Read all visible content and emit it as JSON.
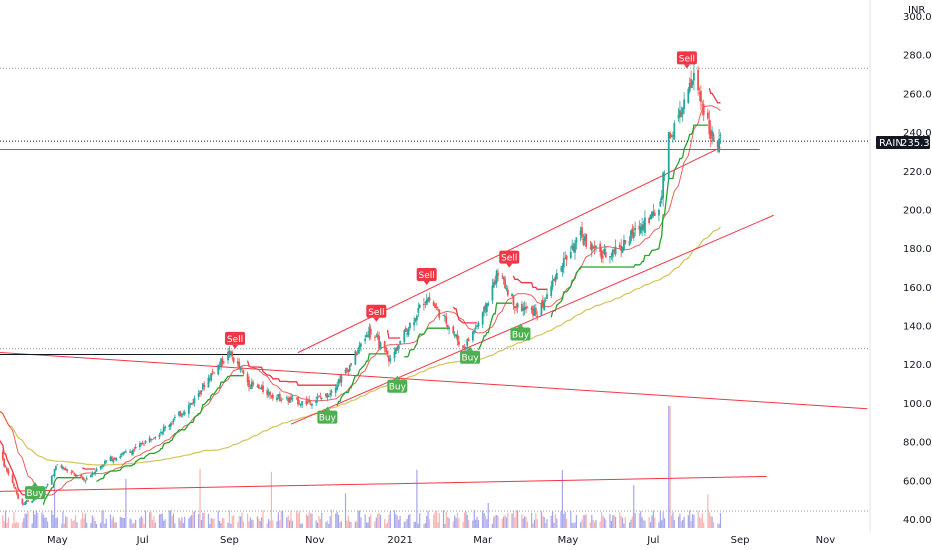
{
  "chart_data": {
    "type": "candlestick",
    "currency": "INR",
    "symbol": "RAIN",
    "last_price": "235.30",
    "ylim": [
      40,
      300
    ],
    "y_ticks": [
      "40.00",
      "60.00",
      "80.00",
      "100.00",
      "120.00",
      "140.00",
      "160.00",
      "180.00",
      "200.00",
      "220.00",
      "240.00",
      "260.00",
      "280.00",
      "300.00"
    ],
    "x_labels": [
      "May",
      "Jul",
      "Sep",
      "Nov",
      "2021",
      "Mar",
      "May",
      "Jul",
      "Sep",
      "Nov"
    ],
    "signals": [
      {
        "label": "Buy",
        "type": "buy",
        "date": "2020-04-15",
        "value": 57
      },
      {
        "label": "Sell",
        "type": "sell",
        "date": "2020-09-05",
        "value": 130
      },
      {
        "label": "Buy",
        "type": "buy",
        "date": "2020-11-10",
        "value": 96
      },
      {
        "label": "Sell",
        "type": "sell",
        "date": "2020-12-15",
        "value": 144
      },
      {
        "label": "Buy",
        "type": "buy",
        "date": "2020-12-30",
        "value": 112
      },
      {
        "label": "Sell",
        "type": "sell",
        "date": "2021-01-20",
        "value": 163
      },
      {
        "label": "Buy",
        "type": "buy",
        "date": "2021-02-20",
        "value": 127
      },
      {
        "label": "Sell",
        "type": "sell",
        "date": "2021-03-20",
        "value": 172
      },
      {
        "label": "Buy",
        "type": "buy",
        "date": "2021-03-28",
        "value": 139
      },
      {
        "label": "Sell",
        "type": "sell",
        "date": "2021-07-25",
        "value": 275
      }
    ],
    "colors": {
      "up": "#26a69a",
      "down": "#ef5350",
      "supertrend_up": "#26a22e",
      "supertrend_down": "#f23645",
      "ma_fast": "#e53935",
      "ma_slow": "#d4c45a",
      "trendline": "#f23645",
      "volume_up": "#9598e8",
      "volume_down": "#f7a6a5"
    }
  }
}
